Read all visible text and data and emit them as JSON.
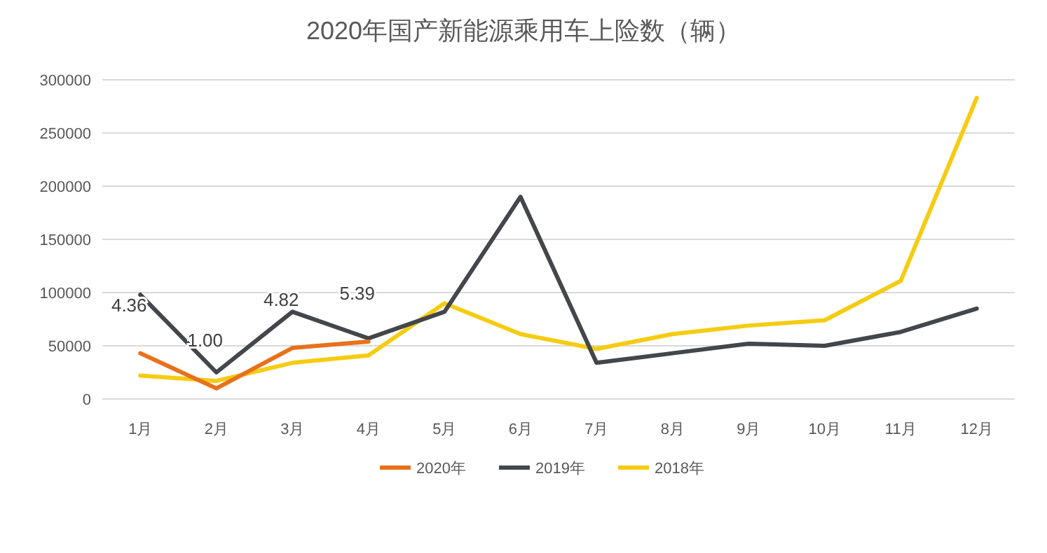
{
  "chart_data": {
    "type": "line",
    "title": "2020年国产新能源乘用车上险数（辆）",
    "categories": [
      "1月",
      "2月",
      "3月",
      "4月",
      "5月",
      "6月",
      "7月",
      "8月",
      "9月",
      "10月",
      "11月",
      "12月"
    ],
    "series": [
      {
        "name": "2020年",
        "color": "#e8711c",
        "values": [
          43000,
          10000,
          48000,
          54000,
          null,
          null,
          null,
          null,
          null,
          null,
          null,
          null
        ]
      },
      {
        "name": "2019年",
        "color": "#43464b",
        "values": [
          98000,
          25000,
          82000,
          57000,
          82000,
          190000,
          34000,
          43000,
          52000,
          50000,
          63000,
          85000
        ]
      },
      {
        "name": "2018年",
        "color": "#f5cc12",
        "values": [
          22000,
          17000,
          34000,
          41000,
          90000,
          61000,
          47000,
          61000,
          69000,
          74000,
          111000,
          283000
        ]
      }
    ],
    "annotations": [
      {
        "text": "4.36",
        "x": "1月",
        "y": 43000
      },
      {
        "text": "1.00",
        "x": "2月",
        "y": 10000
      },
      {
        "text": "4.82",
        "x": "3月",
        "y": 48000
      },
      {
        "text": "5.39",
        "x": "4月",
        "y": 54000
      }
    ],
    "ylim": [
      0,
      300000
    ],
    "yticks": [
      0,
      50000,
      100000,
      150000,
      200000,
      250000,
      300000
    ],
    "grid": "y",
    "legend": "bottom",
    "marker": "none",
    "line_style": "solid"
  }
}
